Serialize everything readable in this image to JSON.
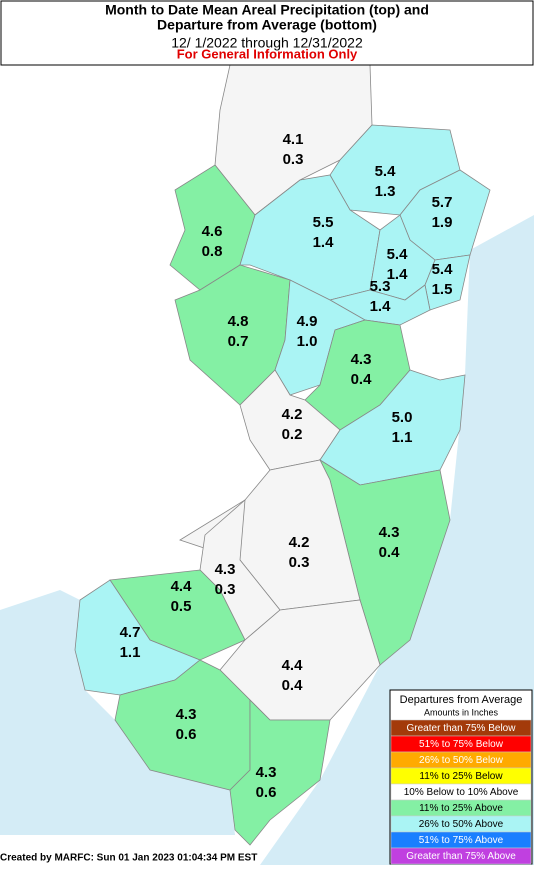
{
  "title_lines": [
    "Month to Date Mean Areal Precipitation (top) and",
    "Departure from Average (bottom)"
  ],
  "date_range": "12/ 1/2022 through 12/31/2022",
  "disclaimer": "For General Information Only",
  "regions": [
    {
      "precip": "4.1",
      "departure": "0.3",
      "color": "#f5f5f5"
    },
    {
      "precip": "5.4",
      "departure": "1.3",
      "color": "#aaf4f4"
    },
    {
      "precip": "5.7",
      "departure": "1.9",
      "color": "#aaf4f4"
    },
    {
      "precip": "4.6",
      "departure": "0.8",
      "color": "#84f0a4"
    },
    {
      "precip": "5.5",
      "departure": "1.4",
      "color": "#aaf4f4"
    },
    {
      "precip": "5.4",
      "departure": "1.4",
      "color": "#aaf4f4"
    },
    {
      "precip": "5.4",
      "departure": "1.5",
      "color": "#aaf4f4"
    },
    {
      "precip": "5.3",
      "departure": "1.4",
      "color": "#aaf4f4"
    },
    {
      "precip": "4.8",
      "departure": "0.7",
      "color": "#84f0a4"
    },
    {
      "precip": "4.9",
      "departure": "1.0",
      "color": "#aaf4f4"
    },
    {
      "precip": "4.3",
      "departure": "0.4",
      "color": "#84f0a4"
    },
    {
      "precip": "4.2",
      "departure": "0.2",
      "color": "#f5f5f5"
    },
    {
      "precip": "5.0",
      "departure": "1.1",
      "color": "#aaf4f4"
    },
    {
      "precip": "4.3",
      "departure": "0.4",
      "color": "#84f0a4"
    },
    {
      "precip": "4.2",
      "departure": "0.3",
      "color": "#f5f5f5"
    },
    {
      "precip": "4.3",
      "departure": "0.3",
      "color": "#f5f5f5"
    },
    {
      "precip": "4.4",
      "departure": "0.5",
      "color": "#84f0a4"
    },
    {
      "precip": "4.7",
      "departure": "1.1",
      "color": "#aaf4f4"
    },
    {
      "precip": "4.4",
      "departure": "0.4",
      "color": "#f5f5f5"
    },
    {
      "precip": "4.3",
      "departure": "0.6",
      "color": "#84f0a4"
    },
    {
      "precip": "4.3",
      "departure": "0.6",
      "color": "#84f0a4"
    }
  ],
  "legend": {
    "title": "Departures from Average",
    "subtitle": "Amounts in Inches",
    "entries": [
      {
        "label": "Greater than 75% Below",
        "color": "#a33a0a"
      },
      {
        "label": "51% to 75% Below",
        "color": "#ff0000"
      },
      {
        "label": "26% to 50% Below",
        "color": "#ffaa00"
      },
      {
        "label": "11% to 25% Below",
        "color": "#ffff00"
      },
      {
        "label": "10% Below to 10% Above",
        "color": "#ffffff"
      },
      {
        "label": "11% to 25% Above",
        "color": "#84f0a4"
      },
      {
        "label": "26% to 50% Above",
        "color": "#aaf4f4"
      },
      {
        "label": "51% to 75% Above",
        "color": "#1a7fff"
      },
      {
        "label": "Greater than 75% Above",
        "color": "#c040e0"
      }
    ]
  },
  "footer": "Created by MARFC: Sun 01 Jan 2023 01:04:34 PM EST"
}
